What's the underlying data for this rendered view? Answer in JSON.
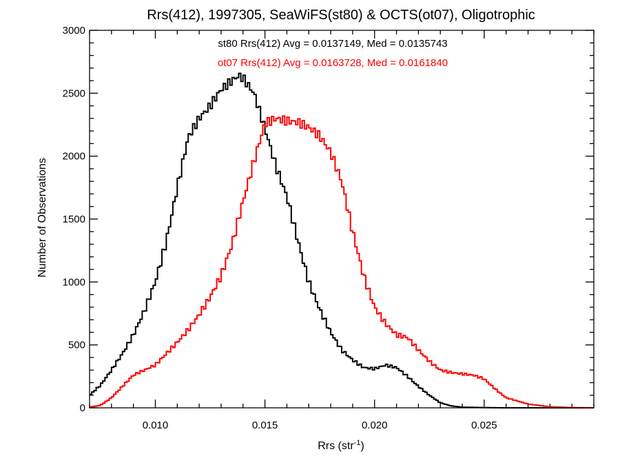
{
  "chart_data": {
    "type": "line",
    "title": "Rrs(412), 1997305, SeaWiFS(st80) & OCTS(ot07), Oligotrophic",
    "xlabel": "Rrs (str",
    "xlabel_sup": "-1",
    "xlabel_close": ")",
    "ylabel": "Number of Observations",
    "xlim": [
      0.007,
      0.03
    ],
    "ylim": [
      0,
      3000
    ],
    "x_ticks": [
      0.01,
      0.015,
      0.02,
      0.025
    ],
    "x_tick_labels": [
      "0.010",
      "0.015",
      "0.020",
      "0.025"
    ],
    "y_ticks": [
      0,
      500,
      1000,
      1500,
      2000,
      2500,
      3000
    ],
    "y_tick_labels": [
      "0",
      "500",
      "1000",
      "1500",
      "2000",
      "2500",
      "3000"
    ],
    "annotations": [
      {
        "text": "st80 Rrs(412) Avg = 0.0137149, Med = 0.0135743",
        "color": "#000000"
      },
      {
        "text": "ot07 Rrs(412) Avg = 0.0163728, Med = 0.0161840",
        "color": "#ff0000"
      }
    ],
    "series": [
      {
        "color": "#000000",
        "x": [
          0.007,
          0.0075,
          0.008,
          0.0085,
          0.009,
          0.0095,
          0.01,
          0.0105,
          0.011,
          0.0115,
          0.012,
          0.0125,
          0.013,
          0.0135,
          0.0138,
          0.014,
          0.0145,
          0.015,
          0.0155,
          0.016,
          0.0165,
          0.017,
          0.0175,
          0.018,
          0.0185,
          0.019,
          0.0195,
          0.02,
          0.0205,
          0.021,
          0.0215,
          0.022,
          0.0225,
          0.023,
          0.0235,
          0.024,
          0.025,
          0.026,
          0.03
        ],
        "values": [
          100,
          180,
          300,
          430,
          580,
          770,
          1000,
          1320,
          1750,
          2150,
          2300,
          2400,
          2530,
          2600,
          2640,
          2620,
          2500,
          2220,
          1920,
          1680,
          1330,
          1000,
          780,
          600,
          460,
          380,
          320,
          310,
          340,
          320,
          250,
          170,
          100,
          40,
          15,
          5,
          2,
          0,
          0
        ]
      },
      {
        "color": "#ff0000",
        "x": [
          0.007,
          0.0075,
          0.008,
          0.0085,
          0.009,
          0.0095,
          0.01,
          0.0105,
          0.011,
          0.0115,
          0.012,
          0.0125,
          0.013,
          0.0135,
          0.014,
          0.0145,
          0.015,
          0.0155,
          0.016,
          0.0165,
          0.017,
          0.0175,
          0.018,
          0.0185,
          0.019,
          0.0195,
          0.02,
          0.0205,
          0.021,
          0.0215,
          0.022,
          0.0225,
          0.023,
          0.0235,
          0.024,
          0.0245,
          0.025,
          0.0255,
          0.026,
          0.027,
          0.028,
          0.029,
          0.03
        ],
        "values": [
          5,
          20,
          80,
          170,
          260,
          300,
          340,
          430,
          520,
          620,
          740,
          880,
          1050,
          1300,
          1640,
          1960,
          2260,
          2300,
          2280,
          2270,
          2230,
          2160,
          2030,
          1800,
          1400,
          1050,
          800,
          670,
          580,
          560,
          460,
          370,
          300,
          280,
          270,
          260,
          230,
          150,
          80,
          30,
          8,
          2,
          0
        ]
      }
    ]
  }
}
